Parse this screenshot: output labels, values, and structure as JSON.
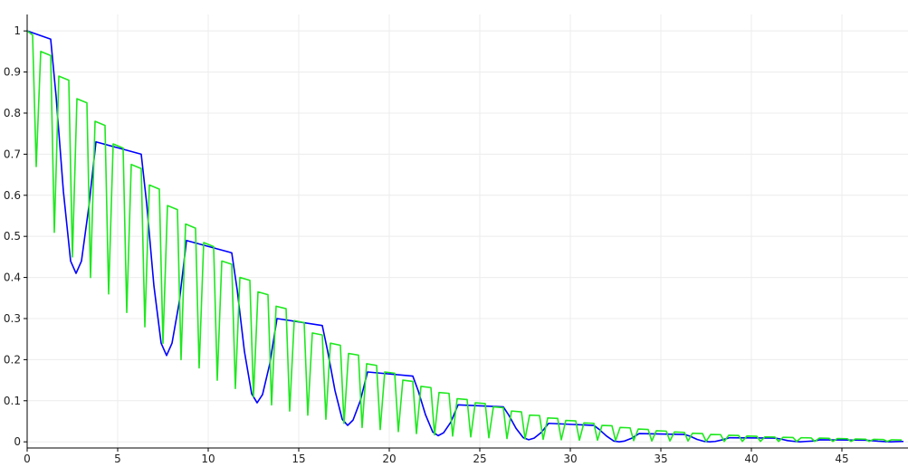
{
  "chart_data": {
    "type": "line",
    "xlim": [
      0,
      48.65
    ],
    "ylim": [
      -0.015,
      1.04
    ],
    "xticks": [
      0,
      5,
      10,
      15,
      20,
      25,
      30,
      35,
      40,
      45
    ],
    "yticks": [
      0,
      0.1,
      0.2,
      0.3,
      0.4,
      0.5,
      0.6,
      0.7,
      0.8,
      0.9,
      1
    ],
    "grid": true,
    "series": [
      {
        "color": "#0000ff",
        "x": [
          0,
          1.3,
          1.6,
          2.0,
          2.4,
          2.7,
          3.0,
          3.4,
          3.8,
          6.3,
          6.6,
          7.0,
          7.4,
          7.7,
          8.0,
          8.4,
          8.8,
          11.3,
          11.6,
          12.0,
          12.4,
          12.7,
          13.0,
          13.4,
          13.8,
          16.3,
          16.6,
          17.0,
          17.4,
          17.7,
          18.0,
          18.4,
          18.8,
          21.3,
          21.6,
          22.0,
          22.4,
          22.7,
          23.0,
          23.4,
          23.8,
          26.3,
          26.6,
          27.0,
          27.4,
          27.7,
          28.0,
          28.4,
          28.8,
          31.3,
          31.6,
          32.0,
          32.4,
          32.7,
          33.0,
          33.4,
          33.8,
          36.3,
          36.6,
          37.0,
          37.4,
          37.7,
          38.0,
          38.4,
          38.8,
          41.3,
          41.6,
          42.0,
          42.4,
          42.7,
          43.0,
          43.4,
          43.8,
          46.3,
          46.6,
          47.0,
          47.4,
          47.7,
          48.0,
          48.4
        ],
        "values": [
          1,
          0.98,
          0.84,
          0.61,
          0.44,
          0.41,
          0.44,
          0.57,
          0.73,
          0.7,
          0.58,
          0.38,
          0.24,
          0.21,
          0.24,
          0.34,
          0.49,
          0.46,
          0.37,
          0.22,
          0.117,
          0.095,
          0.115,
          0.19,
          0.3,
          0.283,
          0.22,
          0.125,
          0.055,
          0.04,
          0.053,
          0.1,
          0.17,
          0.16,
          0.124,
          0.066,
          0.024,
          0.015,
          0.022,
          0.048,
          0.09,
          0.085,
          0.065,
          0.033,
          0.01,
          0.005,
          0.009,
          0.023,
          0.045,
          0.04,
          0.03,
          0.014,
          0.002,
          0,
          0.002,
          0.009,
          0.02,
          0.018,
          0.014,
          0.006,
          0.001,
          0,
          0.001,
          0.005,
          0.01,
          0.009,
          0.007,
          0.003,
          0.001,
          0,
          0.001,
          0.002,
          0.005,
          0.004,
          0.003,
          0.0015,
          0.0005,
          0,
          0.0005,
          0.001
        ]
      },
      {
        "color": "#1ee81e",
        "x": [
          0,
          0.3,
          0.5,
          0.75,
          1.3,
          1.5,
          1.75,
          2.3,
          2.5,
          2.75,
          3.3,
          3.5,
          3.75,
          4.3,
          4.5,
          4.75,
          5.3,
          5.5,
          5.75,
          6.3,
          6.5,
          6.75,
          7.3,
          7.5,
          7.75,
          8.3,
          8.5,
          8.75,
          9.3,
          9.5,
          9.75,
          10.3,
          10.5,
          10.75,
          11.3,
          11.5,
          11.75,
          12.3,
          12.5,
          12.75,
          13.3,
          13.5,
          13.75,
          14.3,
          14.5,
          14.75,
          15.3,
          15.5,
          15.75,
          16.3,
          16.5,
          16.75,
          17.3,
          17.5,
          17.75,
          18.3,
          18.5,
          18.75,
          19.3,
          19.5,
          19.75,
          20.3,
          20.5,
          20.75,
          21.3,
          21.5,
          21.75,
          22.3,
          22.5,
          22.75,
          23.3,
          23.5,
          23.75,
          24.3,
          24.5,
          24.75,
          25.3,
          25.5,
          25.75,
          26.3,
          26.5,
          26.75,
          27.3,
          27.5,
          27.75,
          28.3,
          28.5,
          28.75,
          29.3,
          29.5,
          29.75,
          30.3,
          30.5,
          30.75,
          31.3,
          31.5,
          31.75,
          32.3,
          32.5,
          32.75,
          33.3,
          33.5,
          33.75,
          34.3,
          34.5,
          34.75,
          35.3,
          35.5,
          35.75,
          36.3,
          36.5,
          36.75,
          37.3,
          37.5,
          37.75,
          38.3,
          38.5,
          38.75,
          39.3,
          39.5,
          39.75,
          40.3,
          40.5,
          40.75,
          41.3,
          41.5,
          41.75,
          42.3,
          42.5,
          42.75,
          43.3,
          43.5,
          43.75,
          44.3,
          44.5,
          44.75,
          45.3,
          45.5,
          45.75,
          46.3,
          46.5,
          46.75,
          47.3,
          47.5,
          47.75,
          48.3
        ],
        "values": [
          1,
          0.99,
          0.67,
          0.95,
          0.94,
          0.51,
          0.89,
          0.88,
          0.45,
          0.835,
          0.825,
          0.4,
          0.78,
          0.77,
          0.36,
          0.725,
          0.715,
          0.315,
          0.675,
          0.665,
          0.28,
          0.625,
          0.615,
          0.24,
          0.575,
          0.565,
          0.2,
          0.53,
          0.52,
          0.18,
          0.485,
          0.475,
          0.15,
          0.44,
          0.432,
          0.13,
          0.4,
          0.393,
          0.11,
          0.365,
          0.358,
          0.09,
          0.33,
          0.324,
          0.075,
          0.295,
          0.29,
          0.065,
          0.265,
          0.26,
          0.055,
          0.24,
          0.235,
          0.045,
          0.215,
          0.211,
          0.035,
          0.19,
          0.186,
          0.03,
          0.17,
          0.167,
          0.025,
          0.15,
          0.147,
          0.02,
          0.135,
          0.132,
          0.017,
          0.12,
          0.118,
          0.014,
          0.105,
          0.103,
          0.012,
          0.095,
          0.093,
          0.01,
          0.085,
          0.083,
          0.008,
          0.075,
          0.073,
          0.007,
          0.065,
          0.064,
          0.006,
          0.058,
          0.057,
          0.005,
          0.052,
          0.051,
          0.004,
          0.046,
          0.045,
          0.004,
          0.04,
          0.039,
          0.003,
          0.035,
          0.034,
          0.003,
          0.031,
          0.03,
          0.002,
          0.027,
          0.026,
          0.002,
          0.024,
          0.023,
          0.002,
          0.021,
          0.02,
          0.001,
          0.018,
          0.0175,
          0.001,
          0.016,
          0.0155,
          0.001,
          0.014,
          0.0135,
          0.001,
          0.012,
          0.0115,
          0.001,
          0.011,
          0.0105,
          0.001,
          0.01,
          0.0095,
          0.001,
          0.009,
          0.0085,
          0.001,
          0.008,
          0.0075,
          0.001,
          0.007,
          0.0065,
          0.001,
          0.006,
          0.0055,
          0.001,
          0.005,
          0.0045
        ]
      }
    ]
  }
}
